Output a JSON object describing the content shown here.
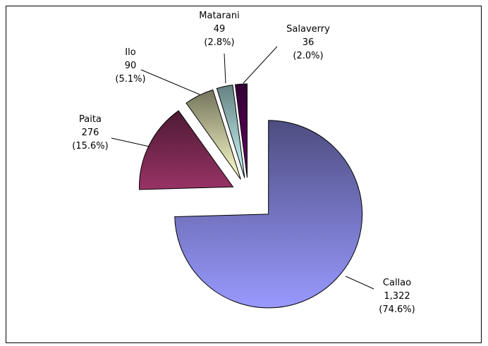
{
  "chart_data": {
    "type": "pie",
    "categories": [
      "Callao",
      "Paita",
      "Ilo",
      "Matarani",
      "Salaverry"
    ],
    "values": [
      1322,
      276,
      90,
      49,
      36
    ],
    "value_labels": [
      "1,322",
      "276",
      "90",
      "49",
      "36"
    ],
    "percent_labels": [
      "(74.6%)",
      "(15.6%)",
      "(5.1%)",
      "(2.8%)",
      "(2.0%)"
    ],
    "colors": [
      "#9999ff",
      "#993366",
      "#ffffcc",
      "#ccffff",
      "#660066"
    ]
  }
}
